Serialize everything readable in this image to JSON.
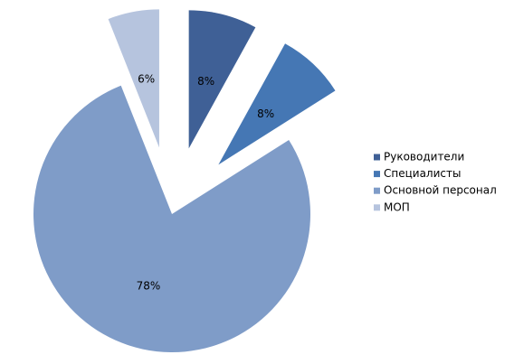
{
  "chart_data": {
    "type": "pie",
    "categories": [
      "Руководители",
      "Специалисты",
      "Основной персонал",
      "МОП"
    ],
    "values": [
      8,
      8,
      78,
      6
    ],
    "value_labels": [
      "8%",
      "8%",
      "78%",
      "6%"
    ],
    "colors": [
      "#3f6096",
      "#4577b4",
      "#7f9cc8",
      "#b6c4de"
    ],
    "exploded": [
      true,
      true,
      false,
      true
    ],
    "legend": "right"
  }
}
